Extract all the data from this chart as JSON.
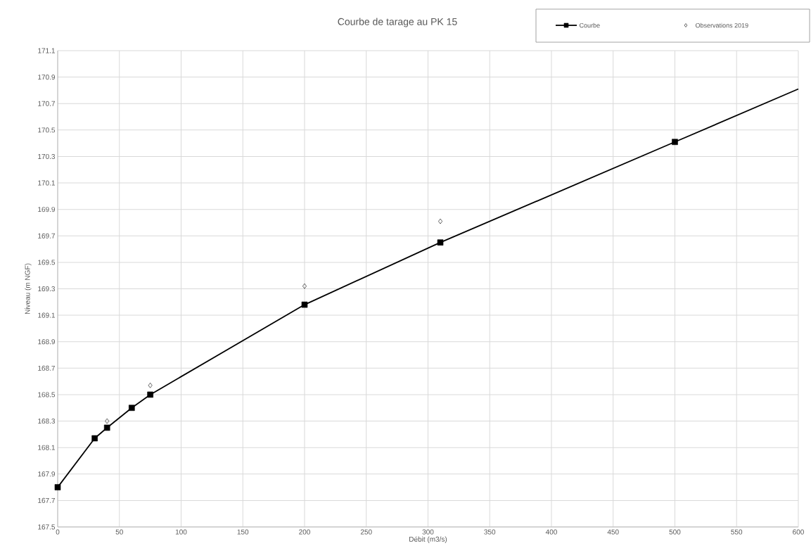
{
  "chart_data": {
    "type": "line",
    "title": "Courbe de tarage au PK 15",
    "xlabel": "Débit (m3/s)",
    "ylabel": "Niveau (m NGF)",
    "xlim": [
      0,
      600
    ],
    "xticks": [
      0,
      50,
      100,
      150,
      200,
      250,
      300,
      350,
      400,
      450,
      500,
      550,
      600
    ],
    "ylim": [
      167.5,
      171.1
    ],
    "yticks": [
      {
        "value": 167.5,
        "label": "167.5"
      },
      {
        "value": 167.7,
        "label": "167.7"
      },
      {
        "value": 167.9,
        "label": "167.9"
      },
      {
        "value": 168.1,
        "label": "168.1"
      },
      {
        "value": 168.3,
        "label": "168.3"
      },
      {
        "value": 168.5,
        "label": "168.5"
      },
      {
        "value": 168.7,
        "label": "168.7"
      },
      {
        "value": 168.9,
        "label": "168.9"
      },
      {
        "value": 169.1,
        "label": "169.1"
      },
      {
        "value": 169.3,
        "label": "169.3"
      },
      {
        "value": 169.5,
        "label": "169.5"
      },
      {
        "value": 169.7,
        "label": "169.7"
      },
      {
        "value": 169.9,
        "label": "169.9"
      },
      {
        "value": 170.1,
        "label": "170.1"
      },
      {
        "value": 170.3,
        "label": "170.3"
      },
      {
        "value": 170.5,
        "label": "170.5"
      },
      {
        "value": 170.7,
        "label": "170.7"
      },
      {
        "value": 170.9,
        "label": "170.9"
      },
      {
        "value": 171.1,
        "label": "171.1"
      }
    ],
    "grid": true,
    "legend": "top right",
    "series": [
      {
        "name": "Courbe",
        "color": "#000000",
        "marker": "square",
        "x": [
          0,
          30,
          40,
          60,
          75,
          200,
          310,
          500
        ],
        "values": [
          167.8,
          168.17,
          168.25,
          168.4,
          168.5,
          169.18,
          169.65,
          170.41
        ]
      },
      {
        "color": "#000000",
        "marker": "none",
        "x": [
          500,
          600
        ],
        "values": [
          170.41,
          170.81
        ]
      },
      {
        "name": "Observations 2019",
        "type": "scatter",
        "color": "#000000",
        "marker": "diamond",
        "x": [
          40,
          75,
          200,
          310
        ],
        "values": [
          168.3,
          168.57,
          169.32,
          169.81
        ]
      }
    ]
  }
}
